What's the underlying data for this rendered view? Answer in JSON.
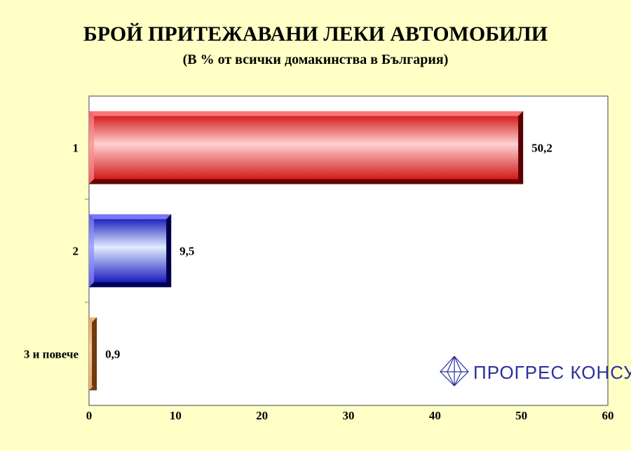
{
  "chart_data": {
    "type": "bar",
    "orientation": "horizontal",
    "title": "БРОЙ ПРИТЕЖАВАНИ ЛЕКИ АВТОМОБИЛИ",
    "subtitle": "(В % от всички домакинства в България)",
    "categories": [
      "1",
      "2",
      "3 и повече"
    ],
    "values": [
      50.2,
      9.5,
      0.9
    ],
    "data_labels": [
      "50,2",
      "9,5",
      "0,9"
    ],
    "xlim": [
      0,
      60
    ],
    "x_ticks": [
      0,
      10,
      20,
      30,
      40,
      50,
      60
    ],
    "grid": false,
    "colors": [
      "#e60d0d",
      "#1414c8",
      "#e28a3c"
    ]
  },
  "logo": {
    "text": "ПРОГРЕС КОНСУЛТ",
    "color": "#2a2f9e"
  }
}
